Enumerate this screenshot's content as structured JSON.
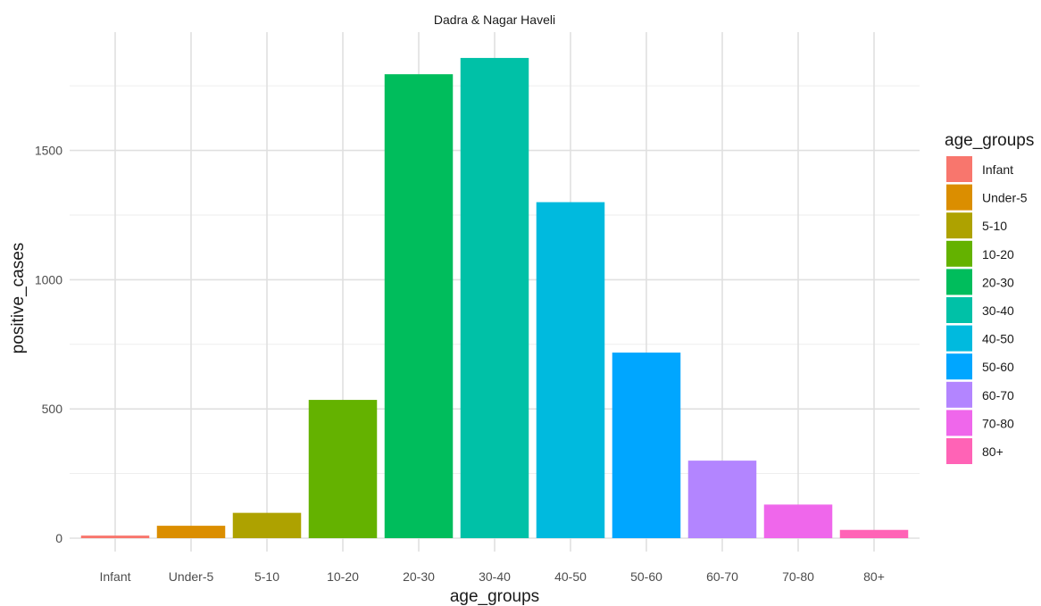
{
  "chart_data": {
    "type": "bar",
    "title": "Dadra & Nagar Haveli",
    "xlabel": "age_groups",
    "ylabel": "positive_cases",
    "categories": [
      "Infant",
      "Under-5",
      "5-10",
      "10-20",
      "20-30",
      "30-40",
      "40-50",
      "50-60",
      "60-70",
      "70-80",
      "80+"
    ],
    "values": [
      10,
      48,
      98,
      535,
      1795,
      1858,
      1300,
      718,
      300,
      130,
      32
    ],
    "colors": [
      "#F8766D",
      "#DB8E00",
      "#AEA200",
      "#64B200",
      "#00BD5C",
      "#00C1A7",
      "#00BADE",
      "#00A6FF",
      "#B385FF",
      "#EF67EB",
      "#FF63B6"
    ],
    "yticks": [
      0,
      500,
      1000,
      1500
    ],
    "ylim": [
      0,
      1950
    ],
    "grid": true,
    "legend": {
      "title": "age_groups",
      "position": "right"
    }
  }
}
